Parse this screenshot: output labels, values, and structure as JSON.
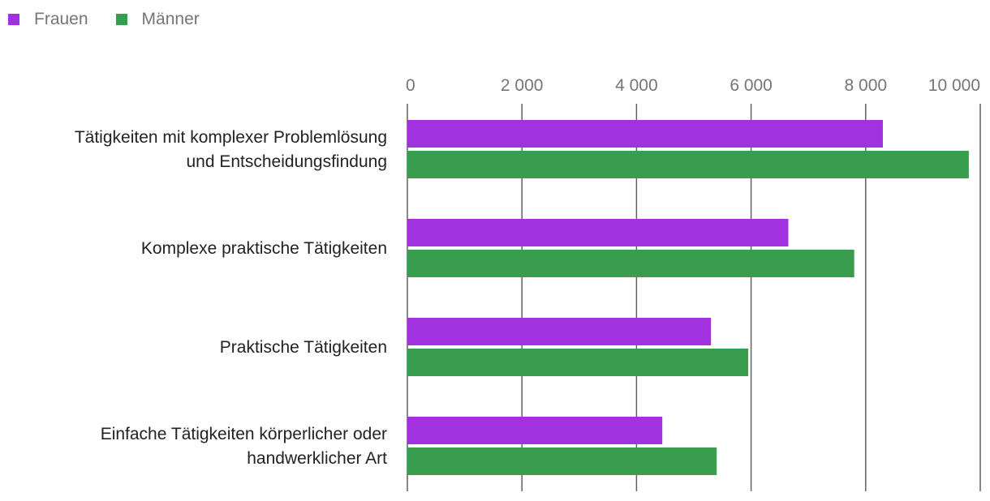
{
  "legend": [
    {
      "name": "Frauen",
      "color": "#a232e0"
    },
    {
      "name": "Männer",
      "color": "#389e4e"
    }
  ],
  "chart_data": {
    "type": "bar",
    "orientation": "horizontal",
    "categories": [
      [
        "Tätigkeiten mit komplexer Problemlösung",
        "und Entscheidungsfindung"
      ],
      [
        "Komplexe praktische Tätigkeiten"
      ],
      [
        "Praktische Tätigkeiten"
      ],
      [
        "Einfache Tätigkeiten körperlicher oder",
        "handwerklicher Art"
      ]
    ],
    "series": [
      {
        "name": "Frauen",
        "color": "#a232e0",
        "values": [
          8300,
          6650,
          5300,
          4450
        ]
      },
      {
        "name": "Männer",
        "color": "#389e4e",
        "values": [
          9800,
          7800,
          5950,
          5400
        ]
      }
    ],
    "xlim": [
      0,
      10000
    ],
    "xticks": [
      0,
      2000,
      4000,
      6000,
      8000,
      10000
    ],
    "xtick_labels": [
      "0",
      "2 000",
      "4 000",
      "6 000",
      "8 000",
      "10 000"
    ],
    "x_axis_position": "top",
    "grid": true,
    "legend_position": "top-left"
  }
}
